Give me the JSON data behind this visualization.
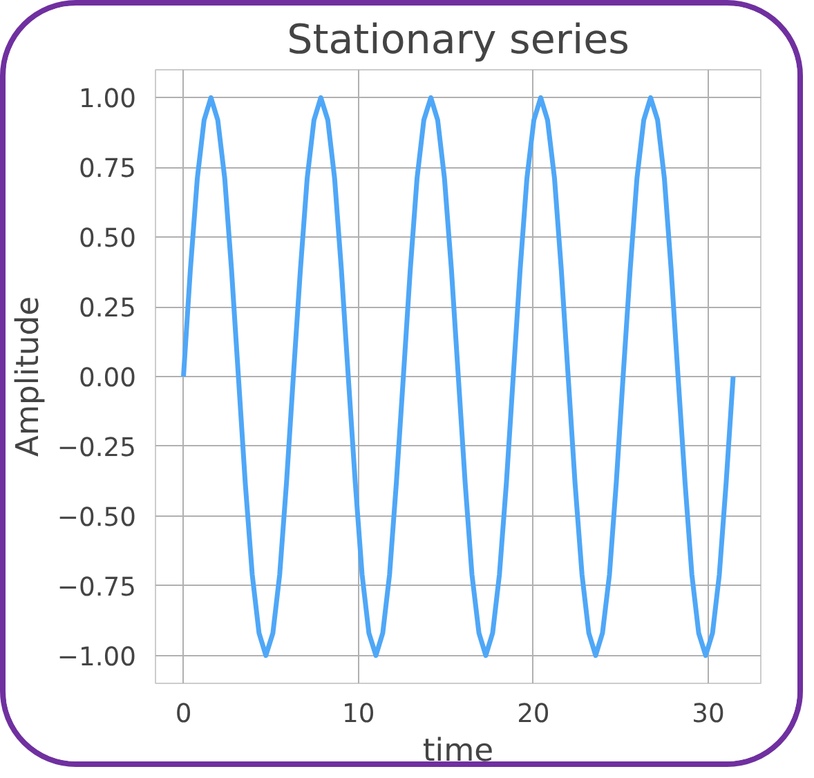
{
  "chart_data": {
    "type": "line",
    "title": "Stationary series",
    "xlabel": "time",
    "ylabel": "Amplitude",
    "x": [
      0,
      0.39,
      0.79,
      1.18,
      1.57,
      1.96,
      2.36,
      2.75,
      3.14,
      3.53,
      3.93,
      4.32,
      4.71,
      5.11,
      5.5,
      5.89,
      6.28,
      6.68,
      7.07,
      7.46,
      7.85,
      8.25,
      8.64,
      9.03,
      9.42,
      9.82,
      10.21,
      10.6,
      11.0,
      11.39,
      11.78,
      12.17,
      12.57,
      12.96,
      13.35,
      13.74,
      14.14,
      14.53,
      14.92,
      15.32,
      15.71,
      16.1,
      16.49,
      16.89,
      17.28,
      17.67,
      18.06,
      18.46,
      18.85,
      19.24,
      19.63,
      20.03,
      20.42,
      20.81,
      21.21,
      21.6,
      21.99,
      22.38,
      22.78,
      23.17,
      23.56,
      23.95,
      24.35,
      24.74,
      25.13,
      25.53,
      25.92,
      26.31,
      26.7,
      27.1,
      27.49,
      27.88,
      28.27,
      28.67,
      29.06,
      29.45,
      29.85,
      30.24,
      30.63,
      31.02,
      31.42
    ],
    "series": [
      {
        "color": "#4fa7f7",
        "values": [
          0,
          0.38,
          0.71,
          0.92,
          1,
          0.92,
          0.71,
          0.38,
          0,
          -0.38,
          -0.71,
          -0.92,
          -1,
          -0.92,
          -0.71,
          -0.38,
          0,
          0.38,
          0.71,
          0.92,
          1,
          0.92,
          0.71,
          0.38,
          0,
          -0.38,
          -0.71,
          -0.92,
          -1,
          -0.92,
          -0.71,
          -0.38,
          0,
          0.38,
          0.71,
          0.92,
          1,
          0.92,
          0.71,
          0.38,
          0,
          -0.38,
          -0.71,
          -0.92,
          -1,
          -0.92,
          -0.71,
          -0.38,
          0,
          0.38,
          0.71,
          0.92,
          1,
          0.92,
          0.71,
          0.38,
          0,
          -0.38,
          -0.71,
          -0.92,
          -1,
          -0.92,
          -0.71,
          -0.38,
          0,
          0.38,
          0.71,
          0.92,
          1,
          0.92,
          0.71,
          0.38,
          0,
          -0.38,
          -0.71,
          -0.92,
          -1,
          -0.92,
          -0.71,
          -0.38,
          0
        ]
      }
    ],
    "xlim": [
      -1.6,
      33
    ],
    "ylim": [
      -1.1,
      1.1
    ],
    "xticks": [
      0,
      10,
      20,
      30
    ],
    "yticks": [
      {
        "value": 1,
        "label": "1.00"
      },
      {
        "value": 0.75,
        "label": "0.75"
      },
      {
        "value": 0.5,
        "label": "0.50"
      },
      {
        "value": 0.25,
        "label": "0.25"
      },
      {
        "value": 0,
        "label": "0.00"
      },
      {
        "value": -0.25,
        "label": "−0.25"
      },
      {
        "value": -0.5,
        "label": "−0.50"
      },
      {
        "value": -0.75,
        "label": "−0.75"
      },
      {
        "value": -1,
        "label": "−1.00"
      }
    ],
    "grid": true,
    "line_style": "solid"
  }
}
